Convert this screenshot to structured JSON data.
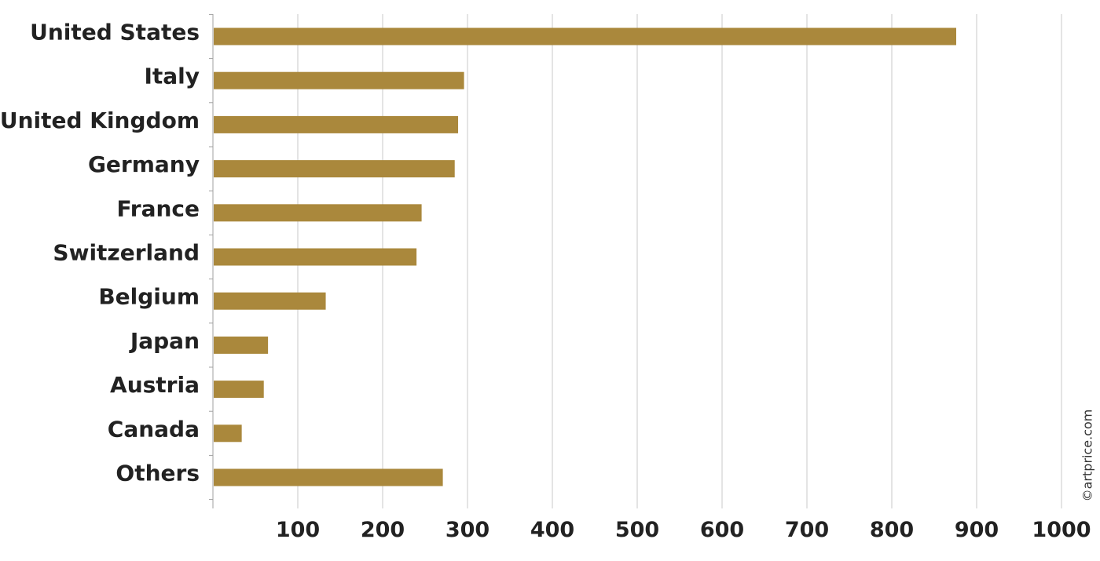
{
  "chart_data": {
    "type": "bar",
    "orientation": "horizontal",
    "categories": [
      "United States",
      "Italy",
      "United Kingdom",
      "Germany",
      "France",
      "Switzerland",
      "Belgium",
      "Japan",
      "Austria",
      "Canada",
      "Others"
    ],
    "values": [
      875,
      295,
      288,
      284,
      245,
      239,
      132,
      64,
      59,
      33,
      270
    ],
    "xticks": [
      "100",
      "200",
      "300",
      "400",
      "500",
      "600",
      "700",
      "800",
      "900",
      "1000"
    ],
    "xlim": [
      0,
      1000
    ],
    "grid": true,
    "bar_color": "#aa883c"
  },
  "watermark": "©artprice.com"
}
